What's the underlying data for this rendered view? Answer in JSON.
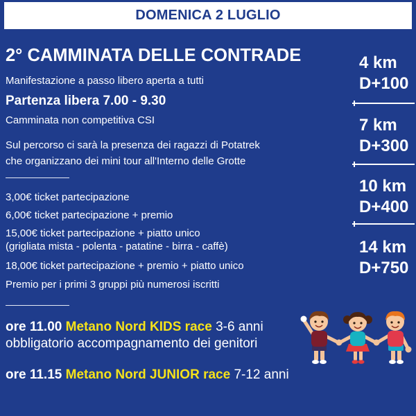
{
  "header": {
    "date": "DOMENICA 2 LUGLIO"
  },
  "event": {
    "title": "2° CAMMINATA DELLE CONTRADE",
    "description": "Manifestazione a passo libero aperta a tutti",
    "start": "Partenza libera 7.00 - 9.30",
    "category": "Camminata non competitiva CSI",
    "notes": [
      "Sul percorso ci sarà la presenza dei ragazzi di Potatrek",
      "che organizzano dei mini tour all'Interno delle Grotte"
    ]
  },
  "tickets": [
    {
      "text": "3,00€ ticket partecipazione"
    },
    {
      "text": "6,00€ ticket partecipazione + premio"
    },
    {
      "text": "15,00€ ticket partecipazione + piatto unico",
      "detail": "(grigliata mista - polenta - patatine - birra - caffè)"
    },
    {
      "text": "18,00€ ticket partecipazione + premio + piatto unico"
    }
  ],
  "prize": "Premio per i primi 3 gruppi più numerosi iscritti",
  "routes": [
    {
      "distance": "4 km",
      "elevation": "D+100"
    },
    {
      "distance": "7 km",
      "elevation": "D+300"
    },
    {
      "distance": "10 km",
      "elevation": "D+400"
    },
    {
      "distance": "14 km",
      "elevation": "D+750"
    }
  ],
  "races": [
    {
      "time": "ore 11.00",
      "name": "Metano Nord KIDS race",
      "age": "3-6 anni",
      "note": "obbligatorio accompagnamento dei genitori"
    },
    {
      "time": "ore 11.15",
      "name": "Metano Nord JUNIOR race",
      "age": "7-12 anni"
    }
  ],
  "illustration": {
    "icon": "kids-holding-hands-icon"
  },
  "colors": {
    "background": "#1f3c8c",
    "text": "#ffffff",
    "accent": "#f5e21a",
    "header_bg": "#ffffff",
    "header_text": "#1f3c8c"
  }
}
